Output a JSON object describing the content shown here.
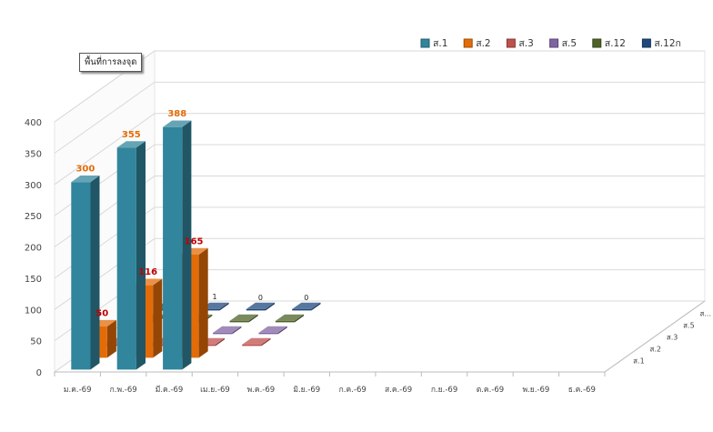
{
  "callout": "พื้นที่การลงจุด",
  "chart_data": {
    "type": "bar",
    "categories": [
      "ม.ค.-69",
      "ก.พ.-69",
      "มี.ค.-69",
      "เม.ย.-69",
      "พ.ค.-69",
      "มิ.ย.-69",
      "ก.ค.-69",
      "ส.ค.-69",
      "ก.ย.-69",
      "ต.ค.-69",
      "พ.ย.-69",
      "ธ.ค.-69"
    ],
    "series": [
      {
        "name": "ส.1",
        "values": [
          300,
          355,
          388,
          null,
          null,
          null,
          null,
          null,
          null,
          null,
          null,
          null
        ],
        "color": "#31859c",
        "label_color": "#e36c09"
      },
      {
        "name": "ส.2",
        "values": [
          50,
          116,
          165,
          null,
          null,
          null,
          null,
          null,
          null,
          null,
          null,
          null
        ],
        "color": "#e36c09",
        "label_color": "#c00000"
      },
      {
        "name": "ส.3",
        "values": [
          0,
          0,
          0,
          0,
          null,
          null,
          null,
          null,
          null,
          null,
          null,
          null
        ],
        "color": "#c0504d"
      },
      {
        "name": "ส.5",
        "values": [
          0,
          0,
          0,
          0,
          null,
          null,
          null,
          null,
          null,
          null,
          null,
          null
        ],
        "color": "#8064a2"
      },
      {
        "name": "ส.12",
        "values": [
          0,
          0,
          0,
          0,
          null,
          null,
          null,
          null,
          null,
          null,
          null,
          null
        ],
        "color": "#4f6228"
      },
      {
        "name": "ส.12ก",
        "values": [
          0,
          1,
          0,
          0,
          null,
          null,
          null,
          null,
          null,
          null,
          null,
          null
        ],
        "color": "#1f497d"
      }
    ],
    "y_ticks": [
      "0",
      "50",
      "100",
      "150",
      "200",
      "250",
      "300",
      "350",
      "400"
    ],
    "z_ticks": [
      "ส.1",
      "ส.2",
      "ส.3",
      "ส.5",
      "ส...",
      "ส..."
    ],
    "visible_labels": [
      {
        "series": 0,
        "cat": 0,
        "text": "300"
      },
      {
        "series": 0,
        "cat": 1,
        "text": "355"
      },
      {
        "series": 0,
        "cat": 2,
        "text": "388"
      },
      {
        "series": 1,
        "cat": 0,
        "text": "50"
      },
      {
        "series": 1,
        "cat": 1,
        "text": "116"
      },
      {
        "series": 1,
        "cat": 2,
        "text": "165"
      },
      {
        "series": 5,
        "cat": 1,
        "text": "1"
      },
      {
        "series": 5,
        "cat": 2,
        "text": "0"
      },
      {
        "series": 5,
        "cat": 3,
        "text": "0"
      }
    ],
    "ylim": [
      0,
      400
    ],
    "grid": true,
    "legend": "top-right"
  }
}
